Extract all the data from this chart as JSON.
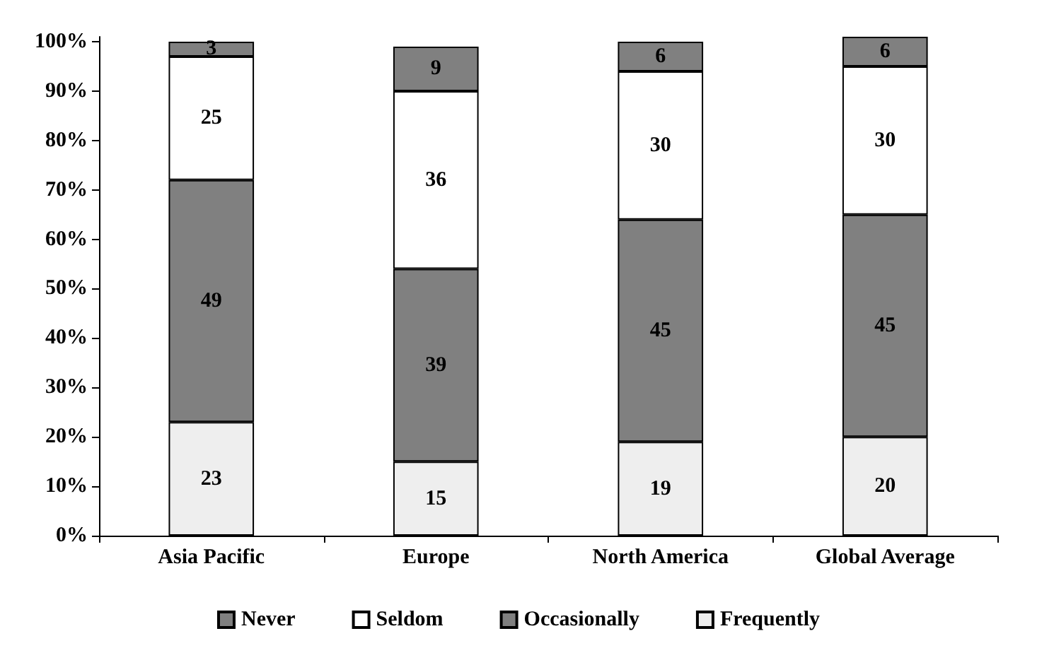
{
  "chart_data": {
    "type": "bar",
    "stacked": true,
    "categories": [
      "Asia Pacific",
      "Europe",
      "North America",
      "Global Average"
    ],
    "series": [
      {
        "name": "Frequently",
        "color": "#eeeeee",
        "values": [
          23,
          15,
          19,
          20
        ]
      },
      {
        "name": "Occasionally",
        "color": "#808080",
        "values": [
          49,
          39,
          45,
          45
        ]
      },
      {
        "name": "Seldom",
        "color": "#ffffff",
        "values": [
          25,
          36,
          30,
          30
        ]
      },
      {
        "name": "Never",
        "color": "#808080",
        "values": [
          3,
          9,
          6,
          6
        ]
      }
    ],
    "ylim": [
      0,
      101
    ],
    "yticks": [
      {
        "value": 0,
        "label": "0%"
      },
      {
        "value": 10,
        "label": "10%"
      },
      {
        "value": 20,
        "label": "20%"
      },
      {
        "value": 30,
        "label": "30%"
      },
      {
        "value": 40,
        "label": "40%"
      },
      {
        "value": 50,
        "label": "50%"
      },
      {
        "value": 60,
        "label": "60%"
      },
      {
        "value": 70,
        "label": "70%"
      },
      {
        "value": 80,
        "label": "80%"
      },
      {
        "value": 90,
        "label": "90%"
      },
      {
        "value": 100,
        "label": "100%"
      }
    ],
    "data_labels": true,
    "legend": "bottom",
    "grid": false
  }
}
